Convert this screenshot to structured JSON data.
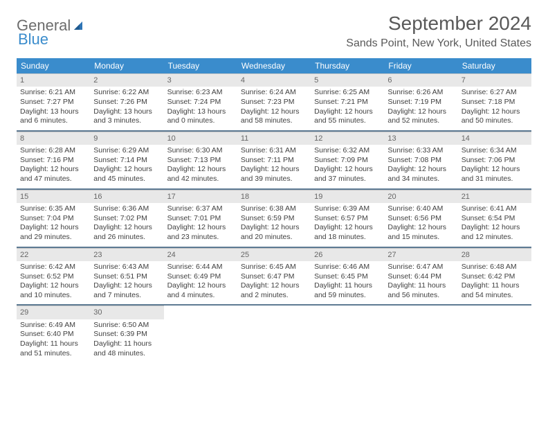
{
  "logo": {
    "word1": "General",
    "word2": "Blue"
  },
  "title": "September 2024",
  "location": "Sands Point, New York, United States",
  "colors": {
    "header_bg": "#3a8ccc",
    "header_text": "#ffffff",
    "week_divider": "#5d7a93",
    "daynum_bg": "#e8e8e8",
    "text": "#404040",
    "title_text": "#595959"
  },
  "weekdays": [
    "Sunday",
    "Monday",
    "Tuesday",
    "Wednesday",
    "Thursday",
    "Friday",
    "Saturday"
  ],
  "weeks": [
    [
      {
        "n": "1",
        "sr": "Sunrise: 6:21 AM",
        "ss": "Sunset: 7:27 PM",
        "d1": "Daylight: 13 hours",
        "d2": "and 6 minutes."
      },
      {
        "n": "2",
        "sr": "Sunrise: 6:22 AM",
        "ss": "Sunset: 7:26 PM",
        "d1": "Daylight: 13 hours",
        "d2": "and 3 minutes."
      },
      {
        "n": "3",
        "sr": "Sunrise: 6:23 AM",
        "ss": "Sunset: 7:24 PM",
        "d1": "Daylight: 13 hours",
        "d2": "and 0 minutes."
      },
      {
        "n": "4",
        "sr": "Sunrise: 6:24 AM",
        "ss": "Sunset: 7:23 PM",
        "d1": "Daylight: 12 hours",
        "d2": "and 58 minutes."
      },
      {
        "n": "5",
        "sr": "Sunrise: 6:25 AM",
        "ss": "Sunset: 7:21 PM",
        "d1": "Daylight: 12 hours",
        "d2": "and 55 minutes."
      },
      {
        "n": "6",
        "sr": "Sunrise: 6:26 AM",
        "ss": "Sunset: 7:19 PM",
        "d1": "Daylight: 12 hours",
        "d2": "and 52 minutes."
      },
      {
        "n": "7",
        "sr": "Sunrise: 6:27 AM",
        "ss": "Sunset: 7:18 PM",
        "d1": "Daylight: 12 hours",
        "d2": "and 50 minutes."
      }
    ],
    [
      {
        "n": "8",
        "sr": "Sunrise: 6:28 AM",
        "ss": "Sunset: 7:16 PM",
        "d1": "Daylight: 12 hours",
        "d2": "and 47 minutes."
      },
      {
        "n": "9",
        "sr": "Sunrise: 6:29 AM",
        "ss": "Sunset: 7:14 PM",
        "d1": "Daylight: 12 hours",
        "d2": "and 45 minutes."
      },
      {
        "n": "10",
        "sr": "Sunrise: 6:30 AM",
        "ss": "Sunset: 7:13 PM",
        "d1": "Daylight: 12 hours",
        "d2": "and 42 minutes."
      },
      {
        "n": "11",
        "sr": "Sunrise: 6:31 AM",
        "ss": "Sunset: 7:11 PM",
        "d1": "Daylight: 12 hours",
        "d2": "and 39 minutes."
      },
      {
        "n": "12",
        "sr": "Sunrise: 6:32 AM",
        "ss": "Sunset: 7:09 PM",
        "d1": "Daylight: 12 hours",
        "d2": "and 37 minutes."
      },
      {
        "n": "13",
        "sr": "Sunrise: 6:33 AM",
        "ss": "Sunset: 7:08 PM",
        "d1": "Daylight: 12 hours",
        "d2": "and 34 minutes."
      },
      {
        "n": "14",
        "sr": "Sunrise: 6:34 AM",
        "ss": "Sunset: 7:06 PM",
        "d1": "Daylight: 12 hours",
        "d2": "and 31 minutes."
      }
    ],
    [
      {
        "n": "15",
        "sr": "Sunrise: 6:35 AM",
        "ss": "Sunset: 7:04 PM",
        "d1": "Daylight: 12 hours",
        "d2": "and 29 minutes."
      },
      {
        "n": "16",
        "sr": "Sunrise: 6:36 AM",
        "ss": "Sunset: 7:02 PM",
        "d1": "Daylight: 12 hours",
        "d2": "and 26 minutes."
      },
      {
        "n": "17",
        "sr": "Sunrise: 6:37 AM",
        "ss": "Sunset: 7:01 PM",
        "d1": "Daylight: 12 hours",
        "d2": "and 23 minutes."
      },
      {
        "n": "18",
        "sr": "Sunrise: 6:38 AM",
        "ss": "Sunset: 6:59 PM",
        "d1": "Daylight: 12 hours",
        "d2": "and 20 minutes."
      },
      {
        "n": "19",
        "sr": "Sunrise: 6:39 AM",
        "ss": "Sunset: 6:57 PM",
        "d1": "Daylight: 12 hours",
        "d2": "and 18 minutes."
      },
      {
        "n": "20",
        "sr": "Sunrise: 6:40 AM",
        "ss": "Sunset: 6:56 PM",
        "d1": "Daylight: 12 hours",
        "d2": "and 15 minutes."
      },
      {
        "n": "21",
        "sr": "Sunrise: 6:41 AM",
        "ss": "Sunset: 6:54 PM",
        "d1": "Daylight: 12 hours",
        "d2": "and 12 minutes."
      }
    ],
    [
      {
        "n": "22",
        "sr": "Sunrise: 6:42 AM",
        "ss": "Sunset: 6:52 PM",
        "d1": "Daylight: 12 hours",
        "d2": "and 10 minutes."
      },
      {
        "n": "23",
        "sr": "Sunrise: 6:43 AM",
        "ss": "Sunset: 6:51 PM",
        "d1": "Daylight: 12 hours",
        "d2": "and 7 minutes."
      },
      {
        "n": "24",
        "sr": "Sunrise: 6:44 AM",
        "ss": "Sunset: 6:49 PM",
        "d1": "Daylight: 12 hours",
        "d2": "and 4 minutes."
      },
      {
        "n": "25",
        "sr": "Sunrise: 6:45 AM",
        "ss": "Sunset: 6:47 PM",
        "d1": "Daylight: 12 hours",
        "d2": "and 2 minutes."
      },
      {
        "n": "26",
        "sr": "Sunrise: 6:46 AM",
        "ss": "Sunset: 6:45 PM",
        "d1": "Daylight: 11 hours",
        "d2": "and 59 minutes."
      },
      {
        "n": "27",
        "sr": "Sunrise: 6:47 AM",
        "ss": "Sunset: 6:44 PM",
        "d1": "Daylight: 11 hours",
        "d2": "and 56 minutes."
      },
      {
        "n": "28",
        "sr": "Sunrise: 6:48 AM",
        "ss": "Sunset: 6:42 PM",
        "d1": "Daylight: 11 hours",
        "d2": "and 54 minutes."
      }
    ],
    [
      {
        "n": "29",
        "sr": "Sunrise: 6:49 AM",
        "ss": "Sunset: 6:40 PM",
        "d1": "Daylight: 11 hours",
        "d2": "and 51 minutes."
      },
      {
        "n": "30",
        "sr": "Sunrise: 6:50 AM",
        "ss": "Sunset: 6:39 PM",
        "d1": "Daylight: 11 hours",
        "d2": "and 48 minutes."
      },
      null,
      null,
      null,
      null,
      null
    ]
  ]
}
